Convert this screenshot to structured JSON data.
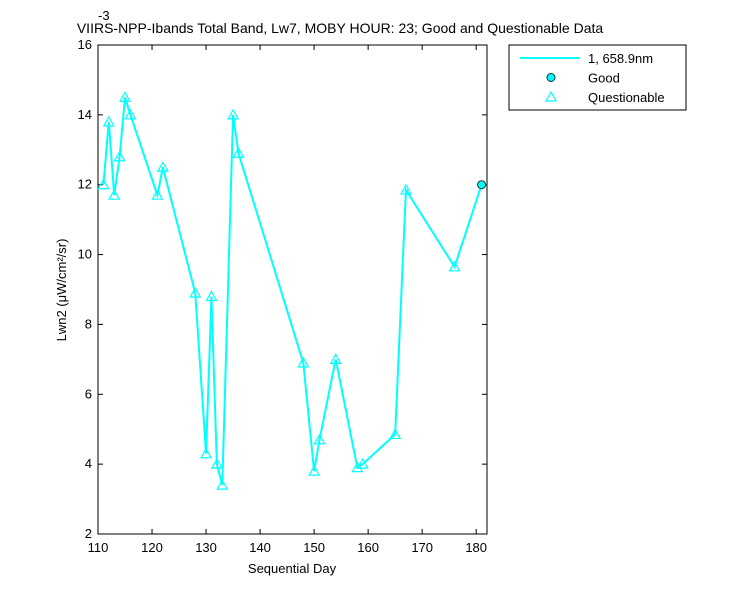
{
  "chart_data": {
    "type": "line",
    "title": "VIIRS-NPP-Ibands Total Band, Lw7, MOBY HOUR: 23;  Good and Questionable Data",
    "y_exponent": "-3",
    "xlabel": "Sequential Day",
    "ylabel": "Lwn2 (μW/cm²/sr)",
    "xlim": [
      110,
      182
    ],
    "ylim": [
      2,
      16
    ],
    "xticks": [
      110,
      120,
      130,
      140,
      150,
      160,
      170,
      180
    ],
    "yticks": [
      2,
      4,
      6,
      8,
      10,
      12,
      14,
      16
    ],
    "legend_position": "outside-right",
    "series": [
      {
        "name": "1, 658.9nm",
        "color": "#00ffff",
        "marker": "none",
        "x": [
          111,
          112,
          113,
          114,
          115,
          116,
          121,
          122,
          128,
          130,
          131,
          132,
          133,
          135,
          136,
          148,
          150,
          151,
          154,
          158,
          159,
          165,
          167,
          176,
          181
        ],
        "values": [
          12.0,
          13.8,
          11.7,
          12.8,
          14.5,
          14.0,
          11.7,
          12.5,
          8.9,
          4.3,
          8.8,
          4.0,
          3.4,
          14.0,
          12.9,
          6.9,
          3.8,
          4.7,
          7.0,
          3.9,
          4.0,
          4.85,
          11.85,
          9.65,
          12.0
        ]
      },
      {
        "name": "Good",
        "color": "#00ffff",
        "marker": "circle",
        "x": [
          181
        ],
        "values": [
          12.0
        ]
      },
      {
        "name": "Questionable",
        "color": "#00ffff",
        "marker": "triangle",
        "x": [
          111,
          112,
          113,
          114,
          115,
          116,
          121,
          122,
          128,
          130,
          131,
          132,
          133,
          135,
          136,
          148,
          150,
          151,
          154,
          158,
          159,
          165,
          167,
          176
        ],
        "values": [
          12.0,
          13.8,
          11.7,
          12.8,
          14.5,
          14.0,
          11.7,
          12.5,
          8.9,
          4.3,
          8.8,
          4.0,
          3.4,
          14.0,
          12.9,
          6.9,
          3.8,
          4.7,
          7.0,
          3.9,
          4.0,
          4.85,
          11.85,
          9.65
        ]
      }
    ]
  }
}
